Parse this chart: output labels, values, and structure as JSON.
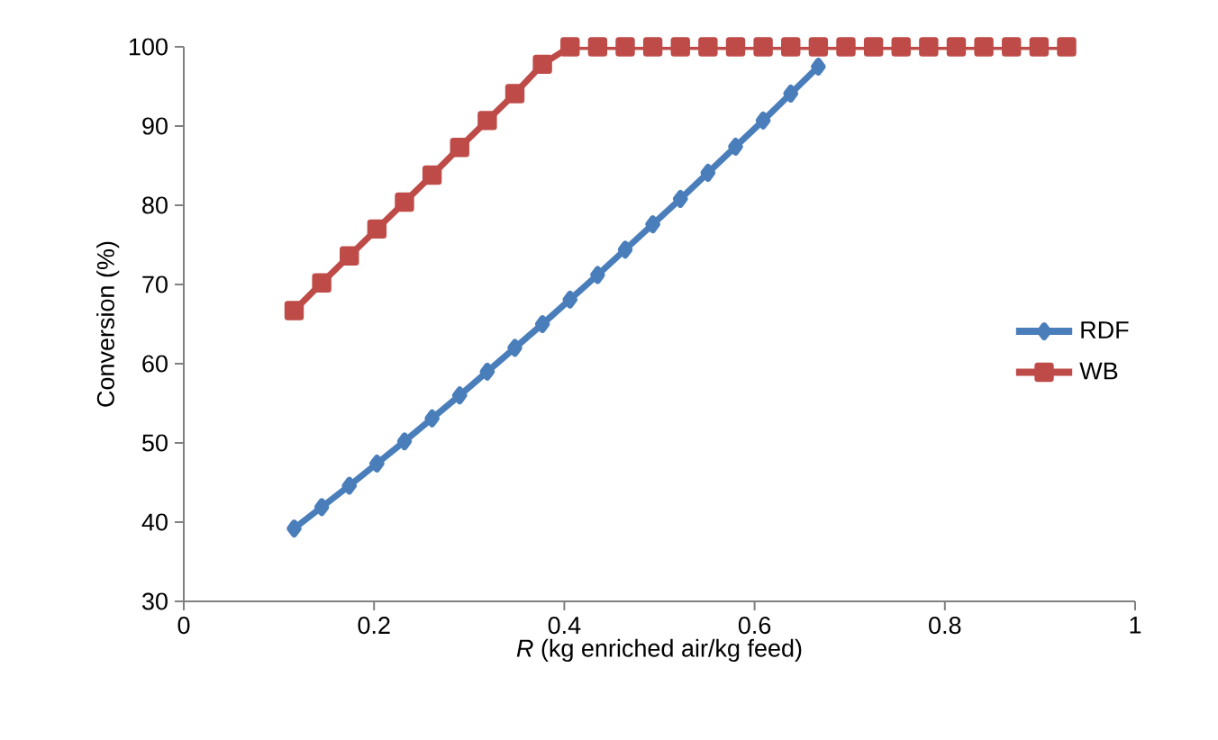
{
  "chart_data": {
    "type": "line",
    "xlabel": "*R* (kg enriched air/kg feed)",
    "ylabel": "Conversion (%)",
    "x": [
      0.116,
      0.145,
      0.174,
      0.203,
      0.232,
      0.261,
      0.29,
      0.319,
      0.348,
      0.377,
      0.406,
      0.435,
      0.464,
      0.493,
      0.522,
      0.551,
      0.58,
      0.609,
      0.638,
      0.667,
      0.696,
      0.725,
      0.754,
      0.783,
      0.812,
      0.841,
      0.87,
      0.899,
      0.928
    ],
    "series": [
      {
        "name": "RDF",
        "color": "#4a7ebb",
        "marker": "diamond",
        "values": [
          39.2,
          41.9,
          44.6,
          47.4,
          50.2,
          53.1,
          56.0,
          59.0,
          62.0,
          65.0,
          68.1,
          71.2,
          74.4,
          77.6,
          80.8,
          84.1,
          87.4,
          90.7,
          94.1,
          97.5,
          null,
          null,
          null,
          null,
          null,
          null,
          null,
          null,
          null
        ]
      },
      {
        "name": "WB",
        "color": "#be4b48",
        "marker": "square",
        "values": [
          66.7,
          70.2,
          73.6,
          77.0,
          80.4,
          83.8,
          87.3,
          90.7,
          94.1,
          97.8,
          100,
          100,
          100,
          100,
          100,
          100,
          100,
          100,
          100,
          100,
          100,
          100,
          100,
          100,
          100,
          100,
          100,
          100,
          100
        ]
      }
    ],
    "xlim": [
      0,
      1
    ],
    "ylim": [
      30,
      100
    ],
    "xticks": [
      0,
      0.2,
      0.4,
      0.6,
      0.8,
      1
    ],
    "yticks": [
      30,
      40,
      50,
      60,
      70,
      80,
      90,
      100
    ],
    "grid": false,
    "legend": "right",
    "line_style": "solid"
  }
}
